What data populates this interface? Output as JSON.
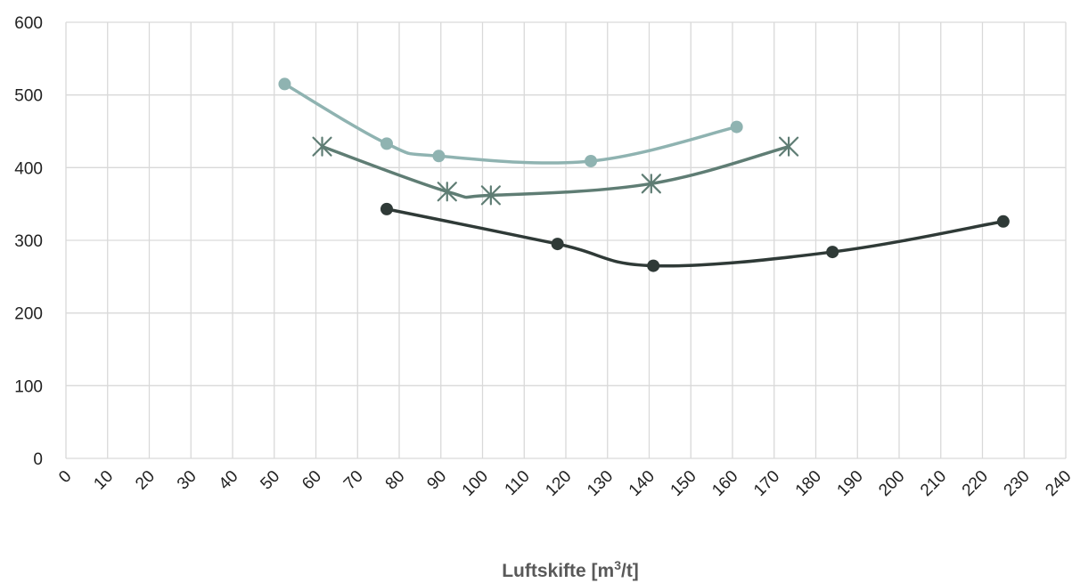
{
  "chart_data": {
    "type": "line",
    "title": "",
    "xlabel": "Luftskifte [m",
    "xlabel_sup": "3",
    "xlabel_tail": "/t]",
    "ylabel": "",
    "xlim": [
      0,
      240
    ],
    "ylim": [
      0,
      600
    ],
    "x_ticks": [
      "0",
      "10",
      "20",
      "30",
      "40",
      "50",
      "60",
      "70",
      "80",
      "90",
      "100",
      "110",
      "120",
      "130",
      "140",
      "150",
      "160",
      "170",
      "180",
      "190",
      "200",
      "210",
      "220",
      "230",
      "240"
    ],
    "y_ticks": [
      "0",
      "100",
      "200",
      "300",
      "400",
      "500",
      "600"
    ],
    "grid": true,
    "legend": "none",
    "series": [
      {
        "marker": "circle",
        "color": "#8fb3b1",
        "points": [
          [
            52.5,
            515
          ],
          [
            77,
            433
          ],
          [
            89.5,
            416
          ],
          [
            126,
            409
          ],
          [
            161,
            456
          ]
        ]
      },
      {
        "marker": "asterisk",
        "color": "#5f7d74",
        "points": [
          [
            61.5,
            429
          ],
          [
            91.5,
            367
          ],
          [
            102,
            362
          ],
          [
            140.5,
            378
          ],
          [
            173.5,
            429
          ]
        ]
      },
      {
        "marker": "circle",
        "color": "#2f3a37",
        "points": [
          [
            77,
            343
          ],
          [
            118,
            295
          ],
          [
            141,
            265
          ],
          [
            184,
            284
          ],
          [
            225,
            326
          ]
        ]
      }
    ]
  }
}
